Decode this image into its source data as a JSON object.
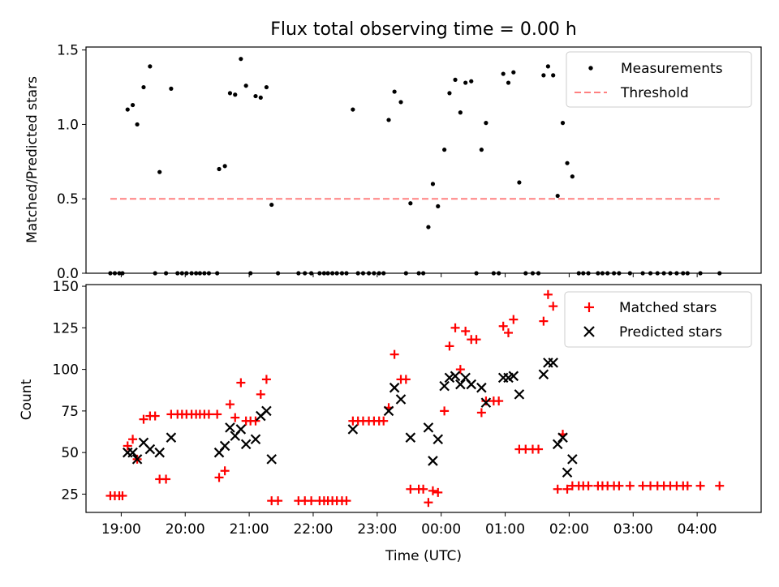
{
  "chart_data": [
    {
      "type": "scatter",
      "title": "Flux total observing time = 0.00 h",
      "xlabel": "",
      "ylabel": "Matched/Predicted stars",
      "ylim": [
        0,
        1.52
      ],
      "xlim": [
        18.45,
        29.0
      ],
      "yticks": [
        {
          "value": 0.0,
          "label": "0.0"
        },
        {
          "value": 0.5,
          "label": "0.5"
        },
        {
          "value": 1.0,
          "label": "1.0"
        },
        {
          "value": 1.5,
          "label": "1.5"
        }
      ],
      "legend_position": "top-right",
      "series": [
        {
          "name": "Measurements",
          "marker": "dot",
          "color": "#000000",
          "points": [
            [
              18.83,
              0
            ],
            [
              18.9,
              0
            ],
            [
              18.97,
              0
            ],
            [
              19.02,
              0
            ],
            [
              19.1,
              1.1
            ],
            [
              19.18,
              1.13
            ],
            [
              19.25,
              1.0
            ],
            [
              19.35,
              1.25
            ],
            [
              19.45,
              1.39
            ],
            [
              19.53,
              0
            ],
            [
              19.6,
              0.68
            ],
            [
              19.7,
              0
            ],
            [
              19.78,
              1.24
            ],
            [
              19.88,
              0
            ],
            [
              19.95,
              0
            ],
            [
              20.02,
              0
            ],
            [
              20.1,
              0
            ],
            [
              20.17,
              0
            ],
            [
              20.23,
              0
            ],
            [
              20.3,
              0
            ],
            [
              20.37,
              0
            ],
            [
              20.5,
              0
            ],
            [
              20.53,
              0.7
            ],
            [
              20.62,
              0.72
            ],
            [
              20.7,
              1.21
            ],
            [
              20.78,
              1.2
            ],
            [
              20.87,
              1.44
            ],
            [
              20.95,
              1.26
            ],
            [
              21.02,
              0
            ],
            [
              21.1,
              1.19
            ],
            [
              21.18,
              1.18
            ],
            [
              21.27,
              1.25
            ],
            [
              21.35,
              0.46
            ],
            [
              21.45,
              0
            ],
            [
              21.77,
              0
            ],
            [
              21.87,
              0
            ],
            [
              21.97,
              0
            ],
            [
              22.1,
              0
            ],
            [
              22.17,
              0
            ],
            [
              22.23,
              0
            ],
            [
              22.3,
              0
            ],
            [
              22.37,
              0
            ],
            [
              22.45,
              0
            ],
            [
              22.52,
              0
            ],
            [
              22.62,
              1.1
            ],
            [
              22.7,
              0
            ],
            [
              22.78,
              0
            ],
            [
              22.87,
              0
            ],
            [
              22.95,
              0
            ],
            [
              23.03,
              0
            ],
            [
              23.1,
              0
            ],
            [
              23.18,
              1.03
            ],
            [
              23.27,
              1.22
            ],
            [
              23.37,
              1.15
            ],
            [
              23.45,
              0
            ],
            [
              23.52,
              0.47
            ],
            [
              23.65,
              0
            ],
            [
              23.72,
              0
            ],
            [
              23.8,
              0.31
            ],
            [
              23.87,
              0.6
            ],
            [
              23.95,
              0.45
            ],
            [
              24.05,
              0.83
            ],
            [
              24.13,
              1.21
            ],
            [
              24.22,
              1.3
            ],
            [
              24.3,
              1.08
            ],
            [
              24.38,
              1.28
            ],
            [
              24.47,
              1.29
            ],
            [
              24.55,
              0
            ],
            [
              24.63,
              0.83
            ],
            [
              24.7,
              1.01
            ],
            [
              24.82,
              0
            ],
            [
              24.9,
              0
            ],
            [
              24.97,
              1.34
            ],
            [
              25.05,
              1.28
            ],
            [
              25.13,
              1.35
            ],
            [
              25.22,
              0.61
            ],
            [
              25.32,
              0
            ],
            [
              25.43,
              0
            ],
            [
              25.52,
              0
            ],
            [
              25.6,
              1.33
            ],
            [
              25.67,
              1.39
            ],
            [
              25.75,
              1.33
            ],
            [
              25.82,
              0.52
            ],
            [
              25.9,
              1.01
            ],
            [
              25.97,
              0.74
            ],
            [
              26.05,
              0.65
            ],
            [
              26.15,
              0
            ],
            [
              26.22,
              0
            ],
            [
              26.3,
              0
            ],
            [
              26.45,
              0
            ],
            [
              26.52,
              0
            ],
            [
              26.6,
              0
            ],
            [
              26.7,
              0
            ],
            [
              26.78,
              0
            ],
            [
              26.95,
              0
            ],
            [
              27.15,
              0
            ],
            [
              27.27,
              0
            ],
            [
              27.38,
              0
            ],
            [
              27.48,
              0
            ],
            [
              27.58,
              0
            ],
            [
              27.68,
              0
            ],
            [
              27.78,
              0
            ],
            [
              27.85,
              0
            ],
            [
              28.05,
              0
            ],
            [
              28.35,
              0
            ]
          ]
        }
      ],
      "threshold": {
        "name": "Threshold",
        "value": 0.5,
        "x_range": [
          18.83,
          28.35
        ],
        "color": "#ff8080",
        "style": "dashed"
      }
    },
    {
      "type": "scatter",
      "title": "",
      "xlabel": "Time (UTC)",
      "ylabel": "Count",
      "ylim": [
        14,
        151
      ],
      "xlim": [
        18.45,
        29.0
      ],
      "yticks": [
        {
          "value": 25,
          "label": "25"
        },
        {
          "value": 50,
          "label": "50"
        },
        {
          "value": 75,
          "label": "75"
        },
        {
          "value": 100,
          "label": "100"
        },
        {
          "value": 125,
          "label": "125"
        },
        {
          "value": 150,
          "label": "150"
        }
      ],
      "xticks": [
        {
          "value": 19,
          "label": "19:00"
        },
        {
          "value": 20,
          "label": "20:00"
        },
        {
          "value": 21,
          "label": "21:00"
        },
        {
          "value": 22,
          "label": "22:00"
        },
        {
          "value": 23,
          "label": "23:00"
        },
        {
          "value": 24,
          "label": "00:00"
        },
        {
          "value": 25,
          "label": "01:00"
        },
        {
          "value": 26,
          "label": "02:00"
        },
        {
          "value": 27,
          "label": "03:00"
        },
        {
          "value": 28,
          "label": "04:00"
        }
      ],
      "legend_position": "top-right",
      "series": [
        {
          "name": "Matched stars",
          "marker": "plus",
          "color": "#ff0000",
          "points": [
            [
              18.83,
              24
            ],
            [
              18.9,
              24
            ],
            [
              18.97,
              24
            ],
            [
              19.02,
              24
            ],
            [
              19.1,
              54
            ],
            [
              19.18,
              58
            ],
            [
              19.25,
              46
            ],
            [
              19.35,
              70
            ],
            [
              19.45,
              72
            ],
            [
              19.53,
              72
            ],
            [
              19.6,
              34
            ],
            [
              19.7,
              34
            ],
            [
              19.78,
              73
            ],
            [
              19.88,
              73
            ],
            [
              19.95,
              73
            ],
            [
              20.02,
              73
            ],
            [
              20.1,
              73
            ],
            [
              20.17,
              73
            ],
            [
              20.23,
              73
            ],
            [
              20.3,
              73
            ],
            [
              20.37,
              73
            ],
            [
              20.5,
              73
            ],
            [
              20.53,
              35
            ],
            [
              20.62,
              39
            ],
            [
              20.7,
              79
            ],
            [
              20.78,
              71
            ],
            [
              20.87,
              92
            ],
            [
              20.95,
              69
            ],
            [
              21.02,
              69
            ],
            [
              21.1,
              69
            ],
            [
              21.18,
              85
            ],
            [
              21.27,
              94
            ],
            [
              21.35,
              21
            ],
            [
              21.45,
              21
            ],
            [
              21.77,
              21
            ],
            [
              21.87,
              21
            ],
            [
              21.97,
              21
            ],
            [
              22.1,
              21
            ],
            [
              22.17,
              21
            ],
            [
              22.23,
              21
            ],
            [
              22.3,
              21
            ],
            [
              22.37,
              21
            ],
            [
              22.45,
              21
            ],
            [
              22.52,
              21
            ],
            [
              22.62,
              69
            ],
            [
              22.7,
              69
            ],
            [
              22.78,
              69
            ],
            [
              22.87,
              69
            ],
            [
              22.95,
              69
            ],
            [
              23.03,
              69
            ],
            [
              23.1,
              69
            ],
            [
              23.18,
              77
            ],
            [
              23.27,
              109
            ],
            [
              23.37,
              94
            ],
            [
              23.45,
              94
            ],
            [
              23.52,
              28
            ],
            [
              23.65,
              28
            ],
            [
              23.72,
              28
            ],
            [
              23.8,
              20
            ],
            [
              23.87,
              27
            ],
            [
              23.95,
              26
            ],
            [
              24.05,
              75
            ],
            [
              24.13,
              114
            ],
            [
              24.22,
              125
            ],
            [
              24.3,
              100
            ],
            [
              24.38,
              123
            ],
            [
              24.47,
              118
            ],
            [
              24.55,
              118
            ],
            [
              24.63,
              74
            ],
            [
              24.7,
              81
            ],
            [
              24.82,
              81
            ],
            [
              24.9,
              81
            ],
            [
              24.97,
              126
            ],
            [
              25.05,
              122
            ],
            [
              25.13,
              130
            ],
            [
              25.22,
              52
            ],
            [
              25.32,
              52
            ],
            [
              25.43,
              52
            ],
            [
              25.52,
              52
            ],
            [
              25.6,
              129
            ],
            [
              25.67,
              145
            ],
            [
              25.75,
              138
            ],
            [
              25.82,
              28
            ],
            [
              25.9,
              61
            ],
            [
              25.97,
              28
            ],
            [
              26.05,
              30
            ],
            [
              26.15,
              30
            ],
            [
              26.22,
              30
            ],
            [
              26.3,
              30
            ],
            [
              26.45,
              30
            ],
            [
              26.52,
              30
            ],
            [
              26.6,
              30
            ],
            [
              26.7,
              30
            ],
            [
              26.78,
              30
            ],
            [
              26.95,
              30
            ],
            [
              27.15,
              30
            ],
            [
              27.27,
              30
            ],
            [
              27.38,
              30
            ],
            [
              27.48,
              30
            ],
            [
              27.58,
              30
            ],
            [
              27.68,
              30
            ],
            [
              27.78,
              30
            ],
            [
              27.85,
              30
            ],
            [
              28.05,
              30
            ],
            [
              28.35,
              30
            ]
          ]
        },
        {
          "name": "Predicted stars",
          "marker": "x",
          "color": "#000000",
          "points": [
            [
              19.1,
              50
            ],
            [
              19.18,
              50
            ],
            [
              19.25,
              46
            ],
            [
              19.35,
              56
            ],
            [
              19.45,
              52
            ],
            [
              19.6,
              50
            ],
            [
              19.78,
              59
            ],
            [
              20.53,
              50
            ],
            [
              20.62,
              54
            ],
            [
              20.7,
              65
            ],
            [
              20.78,
              60
            ],
            [
              20.87,
              64
            ],
            [
              20.95,
              55
            ],
            [
              21.1,
              58
            ],
            [
              21.18,
              72
            ],
            [
              21.27,
              75
            ],
            [
              21.35,
              46
            ],
            [
              22.62,
              64
            ],
            [
              23.18,
              75
            ],
            [
              23.27,
              89
            ],
            [
              23.37,
              82
            ],
            [
              23.52,
              59
            ],
            [
              23.8,
              65
            ],
            [
              23.87,
              45
            ],
            [
              23.95,
              58
            ],
            [
              24.05,
              90
            ],
            [
              24.13,
              95
            ],
            [
              24.22,
              96
            ],
            [
              24.3,
              91
            ],
            [
              24.38,
              95
            ],
            [
              24.47,
              91
            ],
            [
              24.63,
              89
            ],
            [
              24.7,
              80
            ],
            [
              24.97,
              95
            ],
            [
              25.05,
              95
            ],
            [
              25.13,
              96
            ],
            [
              25.22,
              85
            ],
            [
              25.6,
              97
            ],
            [
              25.67,
              104
            ],
            [
              25.75,
              104
            ],
            [
              25.82,
              55
            ],
            [
              25.9,
              59
            ],
            [
              25.97,
              38
            ],
            [
              26.05,
              46
            ]
          ]
        }
      ]
    }
  ]
}
